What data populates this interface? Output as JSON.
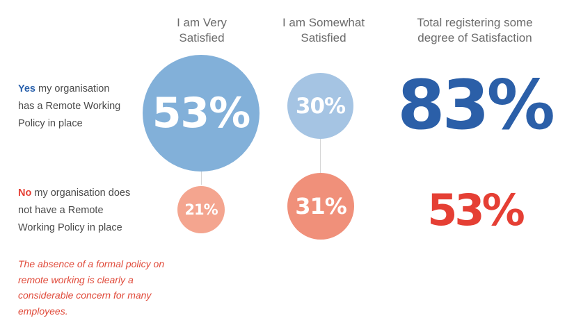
{
  "chart_data": {
    "type": "bubble",
    "title": "",
    "columns": [
      "I am Very Satisfied",
      "I am Somewhat Satisfied",
      "Total registering some degree of Satisfaction"
    ],
    "rows": [
      {
        "lead": "Yes",
        "label": "my organisation has a Remote Working Policy in place",
        "very_satisfied": 53,
        "somewhat_satisfied": 30,
        "total": 83
      },
      {
        "lead": "No",
        "label": "my organisation does not have a Remote Working Policy in place",
        "very_satisfied": 21,
        "somewhat_satisfied": 31,
        "total": 53
      }
    ],
    "unit": "%"
  },
  "headers": {
    "col1_line1": "I am Very",
    "col1_line2": "Satisfied",
    "col2_line1": "I am Somewhat",
    "col2_line2": "Satisfied",
    "col3_line1": "Total registering some",
    "col3_line2": "degree of Satisfaction"
  },
  "rows": {
    "yes": {
      "lead": "Yes",
      "line1": "my organisation",
      "line2": "has a Remote Working",
      "line3": "Policy in place"
    },
    "no": {
      "lead": "No",
      "line1": "my organisation does",
      "line2": "not have a Remote",
      "line3": "Working Policy in place"
    }
  },
  "values": {
    "yes_very": "53%",
    "yes_somewhat": "30%",
    "yes_total": "83%",
    "no_very": "21%",
    "no_somewhat": "31%",
    "no_total": "53%"
  },
  "note": {
    "line1": "The absence of a formal policy on",
    "line2": "remote working is clearly a",
    "line3": "considerable concern for many",
    "line4": "employees."
  },
  "colors": {
    "yes_very": "#82b0d9",
    "yes_somewhat": "#a5c4e3",
    "no_very": "#f4a58f",
    "no_somewhat": "#f0907a",
    "total_yes": "#2b5fa8",
    "total_no": "#e53f34"
  }
}
